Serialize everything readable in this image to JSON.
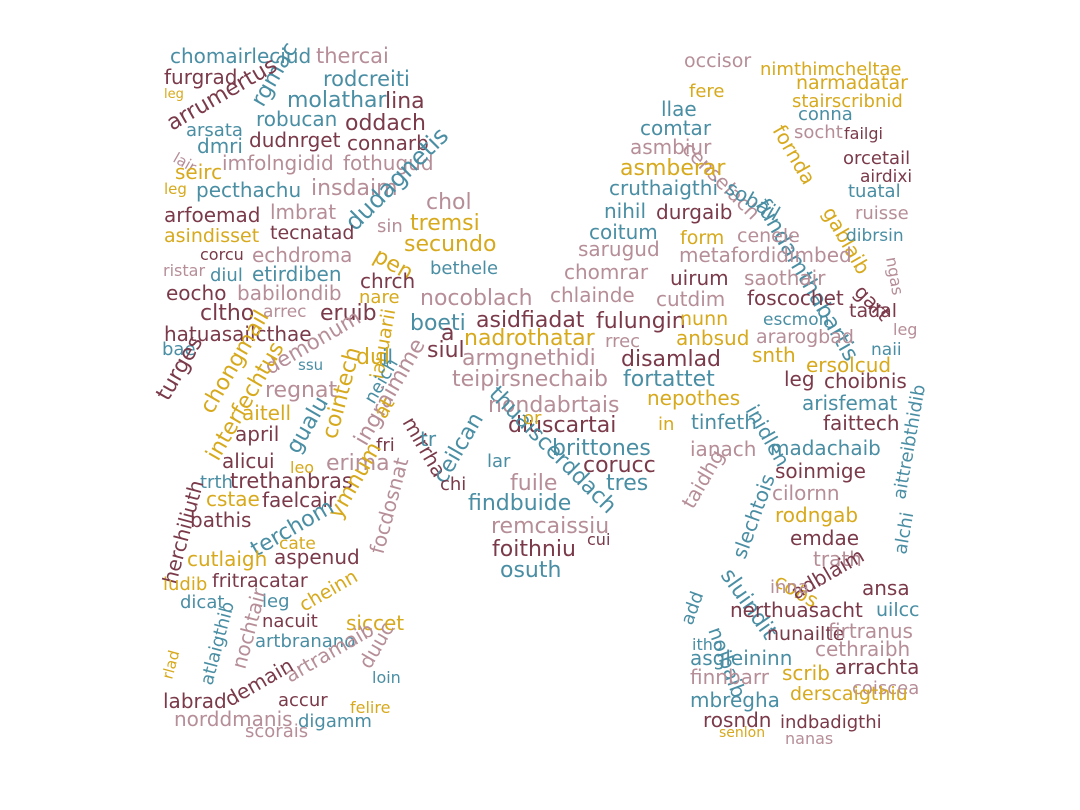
{
  "palette": {
    "maroon": "#7a3a4a",
    "teal": "#4a8ea4",
    "gold": "#d7a91d",
    "rose": "#b68e98"
  },
  "words": [
    {
      "id": "chomairleciud",
      "text": "chomairleciud",
      "color": "teal"
    },
    {
      "id": "thercai",
      "text": "thercai",
      "color": "rose"
    },
    {
      "id": "furgrad",
      "text": "furgrad",
      "color": "maroon"
    },
    {
      "id": "rgmac",
      "text": "rgmac",
      "color": "teal"
    },
    {
      "id": "rodcreiti",
      "text": "rodcreiti",
      "color": "teal"
    },
    {
      "id": "arrumertus",
      "text": "arrumertus",
      "color": "maroon"
    },
    {
      "id": "molathar",
      "text": "molathar",
      "color": "teal"
    },
    {
      "id": "lina",
      "text": "lina",
      "color": "maroon"
    },
    {
      "id": "leg1",
      "text": "leg",
      "color": "gold"
    },
    {
      "id": "robucan",
      "text": "robucan",
      "color": "teal"
    },
    {
      "id": "oddach",
      "text": "oddach",
      "color": "maroon"
    },
    {
      "id": "arsata",
      "text": "arsata",
      "color": "teal"
    },
    {
      "id": "dudnrget",
      "text": "dudnrget",
      "color": "maroon"
    },
    {
      "id": "connarb",
      "text": "connarb",
      "color": "maroon"
    },
    {
      "id": "dmri",
      "text": "dmri",
      "color": "teal"
    },
    {
      "id": "lair",
      "text": "lair",
      "color": "rose"
    },
    {
      "id": "imfolngidid",
      "text": "imfolngidid",
      "color": "rose"
    },
    {
      "id": "fothugud",
      "text": "fothugud",
      "color": "rose"
    },
    {
      "id": "seirc",
      "text": "seirc",
      "color": "gold"
    },
    {
      "id": "leg2",
      "text": "leg",
      "color": "gold"
    },
    {
      "id": "pecthachu",
      "text": "pecthachu",
      "color": "teal"
    },
    {
      "id": "insdaim",
      "text": "insdaim",
      "color": "rose"
    },
    {
      "id": "dudagnetis",
      "text": "dudagnetis",
      "color": "teal"
    },
    {
      "id": "chol",
      "text": "chol",
      "color": "rose"
    },
    {
      "id": "arfoemad",
      "text": "arfoemad",
      "color": "maroon"
    },
    {
      "id": "lmbrat",
      "text": "lmbrat",
      "color": "rose"
    },
    {
      "id": "tremsi",
      "text": "tremsi",
      "color": "gold"
    },
    {
      "id": "asindisset",
      "text": "asindisset",
      "color": "gold"
    },
    {
      "id": "tecnatad",
      "text": "tecnatad",
      "color": "maroon"
    },
    {
      "id": "sin",
      "text": "sin",
      "color": "rose"
    },
    {
      "id": "secundo",
      "text": "secundo",
      "color": "gold"
    },
    {
      "id": "corcu",
      "text": "corcu",
      "color": "maroon"
    },
    {
      "id": "echdroma",
      "text": "echdroma",
      "color": "rose"
    },
    {
      "id": "pen",
      "text": "pen",
      "color": "gold"
    },
    {
      "id": "bethele",
      "text": "bethele",
      "color": "teal"
    },
    {
      "id": "ristar",
      "text": "ristar",
      "color": "rose"
    },
    {
      "id": "diul",
      "text": "diul",
      "color": "teal"
    },
    {
      "id": "etirdiben",
      "text": "etirdiben",
      "color": "teal"
    },
    {
      "id": "chrch",
      "text": "chrch",
      "color": "maroon"
    },
    {
      "id": "eocho",
      "text": "eocho",
      "color": "maroon"
    },
    {
      "id": "babilondib",
      "text": "babilondib",
      "color": "rose"
    },
    {
      "id": "nare",
      "text": "nare",
      "color": "gold"
    },
    {
      "id": "nocoblach",
      "text": "nocoblach",
      "color": "rose"
    },
    {
      "id": "cltho",
      "text": "cltho",
      "color": "maroon"
    },
    {
      "id": "arrec",
      "text": "arrec",
      "color": "rose"
    },
    {
      "id": "eruib",
      "text": "eruib",
      "color": "maroon"
    },
    {
      "id": "boeti",
      "text": "boeti",
      "color": "teal"
    },
    {
      "id": "hatuasailcthae",
      "text": "hatuasailcthae",
      "color": "maroon"
    },
    {
      "id": "demonum",
      "text": "demonum",
      "color": "rose"
    },
    {
      "id": "ianuarii",
      "text": "ianuarii",
      "color": "gold"
    },
    {
      "id": "siul",
      "text": "siul",
      "color": "maroon"
    },
    {
      "id": "bae",
      "text": "bae",
      "color": "teal"
    },
    {
      "id": "turges",
      "text": "turges",
      "color": "maroon"
    },
    {
      "id": "chongmail",
      "text": "chongmail",
      "color": "gold"
    },
    {
      "id": "regnat",
      "text": "regnat",
      "color": "rose"
    },
    {
      "id": "dul",
      "text": "dul",
      "color": "gold"
    },
    {
      "id": "ssu",
      "text": "ssu",
      "color": "teal"
    },
    {
      "id": "interfechtus",
      "text": "interfechtus",
      "color": "gold"
    },
    {
      "id": "aitell",
      "text": "aitell",
      "color": "gold"
    },
    {
      "id": "cointech",
      "text": "cointech",
      "color": "gold"
    },
    {
      "id": "neich",
      "text": "neich",
      "color": "teal"
    },
    {
      "id": "ingraimme",
      "text": "ingraimme",
      "color": "rose"
    },
    {
      "id": "mirrha",
      "text": "mirrha",
      "color": "maroon"
    },
    {
      "id": "april",
      "text": "april",
      "color": "maroon"
    },
    {
      "id": "gualu",
      "text": "gualu",
      "color": "teal"
    },
    {
      "id": "alicui",
      "text": "alicui",
      "color": "maroon"
    },
    {
      "id": "erima",
      "text": "erima",
      "color": "rose"
    },
    {
      "id": "fri",
      "text": "fri",
      "color": "maroon"
    },
    {
      "id": "trth",
      "text": "trth",
      "color": "teal"
    },
    {
      "id": "trethanbras",
      "text": "trethanbras",
      "color": "maroon"
    },
    {
      "id": "leo",
      "text": "leo",
      "color": "gold"
    },
    {
      "id": "cstae",
      "text": "cstae",
      "color": "gold"
    },
    {
      "id": "faelcair",
      "text": "faelcair",
      "color": "maroon"
    },
    {
      "id": "ymnum",
      "text": "ymnum",
      "color": "gold"
    },
    {
      "id": "bathis",
      "text": "bathis",
      "color": "maroon"
    },
    {
      "id": "terchom",
      "text": "terchom",
      "color": "teal"
    },
    {
      "id": "herchiliuth",
      "text": "herchiliuth",
      "color": "maroon"
    },
    {
      "id": "cate",
      "text": "cate",
      "color": "gold"
    },
    {
      "id": "cutlaigh",
      "text": "cutlaigh",
      "color": "gold"
    },
    {
      "id": "aspenud",
      "text": "aspenud",
      "color": "maroon"
    },
    {
      "id": "iudib",
      "text": "iudib",
      "color": "gold"
    },
    {
      "id": "fritracatar",
      "text": "fritracatar",
      "color": "maroon"
    },
    {
      "id": "focdosnat",
      "text": "focdosnat",
      "color": "rose"
    },
    {
      "id": "dicat",
      "text": "dicat",
      "color": "teal"
    },
    {
      "id": "leg3",
      "text": "leg",
      "color": "teal"
    },
    {
      "id": "cheinn",
      "text": "cheinn",
      "color": "gold"
    },
    {
      "id": "nacuit",
      "text": "nacuit",
      "color": "maroon"
    },
    {
      "id": "siccet",
      "text": "siccet",
      "color": "gold"
    },
    {
      "id": "nochtair",
      "text": "nochtair",
      "color": "rose"
    },
    {
      "id": "artbranano",
      "text": "artbranano",
      "color": "teal"
    },
    {
      "id": "duuc",
      "text": "duuc",
      "color": "rose"
    },
    {
      "id": "atlaigthib",
      "text": "atlaigthib",
      "color": "teal"
    },
    {
      "id": "rlad",
      "text": "rlad",
      "color": "gold"
    },
    {
      "id": "artramaib",
      "text": "artramaib",
      "color": "rose"
    },
    {
      "id": "loin",
      "text": "loin",
      "color": "teal"
    },
    {
      "id": "demain",
      "text": "demain",
      "color": "maroon"
    },
    {
      "id": "labrad",
      "text": "labrad",
      "color": "maroon"
    },
    {
      "id": "accur",
      "text": "accur",
      "color": "maroon"
    },
    {
      "id": "felire",
      "text": "felire",
      "color": "gold"
    },
    {
      "id": "norddmanis",
      "text": "norddmanis",
      "color": "rose"
    },
    {
      "id": "digamm",
      "text": "digamm",
      "color": "teal"
    },
    {
      "id": "scorais",
      "text": "scorais",
      "color": "rose"
    },
    {
      "id": "occisor",
      "text": "occisor",
      "color": "rose"
    },
    {
      "id": "nimthimcheltae",
      "text": "nimthimcheltae",
      "color": "gold"
    },
    {
      "id": "fere",
      "text": "fere",
      "color": "gold"
    },
    {
      "id": "fornda",
      "text": "fornda",
      "color": "gold"
    },
    {
      "id": "narmadatar",
      "text": "narmadatar",
      "color": "gold"
    },
    {
      "id": "llae",
      "text": "llae",
      "color": "teal"
    },
    {
      "id": "stairscribnid",
      "text": "stairscribnid",
      "color": "gold"
    },
    {
      "id": "conna",
      "text": "conna",
      "color": "teal"
    },
    {
      "id": "comtar",
      "text": "comtar",
      "color": "teal"
    },
    {
      "id": "fundamthabartis",
      "text": "fundamthabartis",
      "color": "teal"
    },
    {
      "id": "socht",
      "text": "socht",
      "color": "rose"
    },
    {
      "id": "failgi",
      "text": "failgi",
      "color": "maroon"
    },
    {
      "id": "asmbiur",
      "text": "asmbiur",
      "color": "rose"
    },
    {
      "id": "censelach",
      "text": "censelach",
      "color": "rose"
    },
    {
      "id": "orcetail",
      "text": "orcetail",
      "color": "maroon"
    },
    {
      "id": "asmberar",
      "text": "asmberar",
      "color": "gold"
    },
    {
      "id": "gablaib",
      "text": "gablaib",
      "color": "gold"
    },
    {
      "id": "airdixi",
      "text": "airdixi",
      "color": "maroon"
    },
    {
      "id": "cruthaigthi",
      "text": "cruthaigthi",
      "color": "teal"
    },
    {
      "id": "sobail",
      "text": "sobail",
      "color": "teal"
    },
    {
      "id": "tuatal",
      "text": "tuatal",
      "color": "teal"
    },
    {
      "id": "nihil",
      "text": "nihil",
      "color": "teal"
    },
    {
      "id": "durgaib",
      "text": "durgaib",
      "color": "maroon"
    },
    {
      "id": "ruisse",
      "text": "ruisse",
      "color": "rose"
    },
    {
      "id": "coitum",
      "text": "coitum",
      "color": "teal"
    },
    {
      "id": "form",
      "text": "form",
      "color": "gold"
    },
    {
      "id": "cenele",
      "text": "cenele",
      "color": "rose"
    },
    {
      "id": "dibrsin",
      "text": "dibrsin",
      "color": "teal"
    },
    {
      "id": "sarugud",
      "text": "sarugud",
      "color": "rose"
    },
    {
      "id": "metafordidimbed",
      "text": "metafordidimbed",
      "color": "rose"
    },
    {
      "id": "ngas",
      "text": "ngas",
      "color": "rose"
    },
    {
      "id": "chomrar",
      "text": "chomrar",
      "color": "rose"
    },
    {
      "id": "uirum",
      "text": "uirum",
      "color": "maroon"
    },
    {
      "id": "saothair",
      "text": "saothair",
      "color": "rose"
    },
    {
      "id": "gart",
      "text": "gart",
      "color": "maroon"
    },
    {
      "id": "chlainde",
      "text": "chlainde",
      "color": "rose"
    },
    {
      "id": "cutdim",
      "text": "cutdim",
      "color": "rose"
    },
    {
      "id": "foscochet",
      "text": "foscochet",
      "color": "maroon"
    },
    {
      "id": "asidfiadat",
      "text": "asidfiadat",
      "color": "maroon"
    },
    {
      "id": "tadal",
      "text": "tadal",
      "color": "maroon"
    },
    {
      "id": "nadrothatar",
      "text": "nadrothatar",
      "color": "gold"
    },
    {
      "id": "fulungin",
      "text": "fulungin",
      "color": "maroon"
    },
    {
      "id": "nunn",
      "text": "nunn",
      "color": "gold"
    },
    {
      "id": "escmon",
      "text": "escmon",
      "color": "teal"
    },
    {
      "id": "ararogbad",
      "text": "ararogbad",
      "color": "rose"
    },
    {
      "id": "leg4",
      "text": "leg",
      "color": "rose"
    },
    {
      "id": "anbsud",
      "text": "anbsud",
      "color": "gold"
    },
    {
      "id": "rrec",
      "text": "rrec",
      "color": "rose"
    },
    {
      "id": "naii",
      "text": "naii",
      "color": "teal"
    },
    {
      "id": "armgnethidi",
      "text": "armgnethidi",
      "color": "rose"
    },
    {
      "id": "disamlad",
      "text": "disamlad",
      "color": "maroon"
    },
    {
      "id": "snth",
      "text": "snth",
      "color": "gold"
    },
    {
      "id": "ersolcud",
      "text": "ersolcud",
      "color": "gold"
    },
    {
      "id": "teipirsnechaib",
      "text": "teipirsnechaib",
      "color": "rose"
    },
    {
      "id": "fortattet",
      "text": "fortattet",
      "color": "teal"
    },
    {
      "id": "inidlen",
      "text": "inidlen",
      "color": "teal"
    },
    {
      "id": "leg5",
      "text": "leg",
      "color": "maroon"
    },
    {
      "id": "choibnis",
      "text": "choibnis",
      "color": "maroon"
    },
    {
      "id": "nondabrtais",
      "text": "nondabrtais",
      "color": "rose"
    },
    {
      "id": "nepothes",
      "text": "nepothes",
      "color": "gold"
    },
    {
      "id": "arisfemat",
      "text": "arisfemat",
      "color": "teal"
    },
    {
      "id": "diuscartai",
      "text": "diuscartai",
      "color": "maroon"
    },
    {
      "id": "tinfeth",
      "text": "tinfeth",
      "color": "teal"
    },
    {
      "id": "faittech",
      "text": "faittech",
      "color": "maroon"
    },
    {
      "id": "ceilcan",
      "text": "ceilcan",
      "color": "teal"
    },
    {
      "id": "thuaiscerddach",
      "text": "thuaiscerddach",
      "color": "teal"
    },
    {
      "id": "brittones",
      "text": "brittones",
      "color": "teal"
    },
    {
      "id": "ianach",
      "text": "ianach",
      "color": "rose"
    },
    {
      "id": "madachaib",
      "text": "madachaib",
      "color": "teal"
    },
    {
      "id": "aittreibthidib",
      "text": "aittreibthidib",
      "color": "teal"
    },
    {
      "id": "lar",
      "text": "lar",
      "color": "teal"
    },
    {
      "id": "corucc",
      "text": "corucc",
      "color": "maroon"
    },
    {
      "id": "taidhg",
      "text": "taidhg",
      "color": "rose"
    },
    {
      "id": "soinmige",
      "text": "soinmige",
      "color": "maroon"
    },
    {
      "id": "chi",
      "text": "chi",
      "color": "maroon"
    },
    {
      "id": "fuile",
      "text": "fuile",
      "color": "rose"
    },
    {
      "id": "tres",
      "text": "tres",
      "color": "teal"
    },
    {
      "id": "slechtois",
      "text": "slechtois",
      "color": "teal"
    },
    {
      "id": "cilornn",
      "text": "cilornn",
      "color": "rose"
    },
    {
      "id": "findbuide",
      "text": "findbuide",
      "color": "teal"
    },
    {
      "id": "rodngab",
      "text": "rodngab",
      "color": "gold"
    },
    {
      "id": "remcaissiu",
      "text": "remcaissiu",
      "color": "rose"
    },
    {
      "id": "emdae",
      "text": "emdae",
      "color": "maroon"
    },
    {
      "id": "alchi",
      "text": "alchi",
      "color": "teal"
    },
    {
      "id": "foithniu",
      "text": "foithniu",
      "color": "maroon"
    },
    {
      "id": "cui",
      "text": "cui",
      "color": "maroon"
    },
    {
      "id": "sluindit",
      "text": "sluindit",
      "color": "teal"
    },
    {
      "id": "trath",
      "text": "trath",
      "color": "rose"
    },
    {
      "id": "osuth",
      "text": "osuth",
      "color": "teal"
    },
    {
      "id": "cobs",
      "text": "cobs",
      "color": "gold"
    },
    {
      "id": "adblaim",
      "text": "adblaim",
      "color": "maroon"
    },
    {
      "id": "noibaib",
      "text": "noibaib",
      "color": "teal"
    },
    {
      "id": "inna",
      "text": "inna",
      "color": "rose"
    },
    {
      "id": "ansa",
      "text": "ansa",
      "color": "maroon"
    },
    {
      "id": "nerthuasacht",
      "text": "nerthuasacht",
      "color": "maroon"
    },
    {
      "id": "uilcc",
      "text": "uilcc",
      "color": "teal"
    },
    {
      "id": "nunailte",
      "text": "nunailte",
      "color": "maroon"
    },
    {
      "id": "firtranus",
      "text": "firtranus",
      "color": "rose"
    },
    {
      "id": "asgleininn",
      "text": "asgleininn",
      "color": "teal"
    },
    {
      "id": "cethraibh",
      "text": "cethraibh",
      "color": "rose"
    },
    {
      "id": "arrachta",
      "text": "arrachta",
      "color": "maroon"
    },
    {
      "id": "finnbarr",
      "text": "finnbarr",
      "color": "rose"
    },
    {
      "id": "scrib",
      "text": "scrib",
      "color": "gold"
    },
    {
      "id": "coiscea",
      "text": "coiscea",
      "color": "rose"
    },
    {
      "id": "mbregha",
      "text": "mbregha",
      "color": "teal"
    },
    {
      "id": "derscaigthiu",
      "text": "derscaigthiu",
      "color": "gold"
    },
    {
      "id": "rosndn",
      "text": "rosndn",
      "color": "maroon"
    },
    {
      "id": "indbadigthi",
      "text": "indbadigthi",
      "color": "maroon"
    },
    {
      "id": "nanas",
      "text": "nanas",
      "color": "rose"
    },
    {
      "id": "senlon",
      "text": "senlon",
      "color": "gold"
    },
    {
      "id": "add",
      "text": "add",
      "color": "teal"
    },
    {
      "id": "itho",
      "text": "itho",
      "color": "teal"
    },
    {
      "id": "a",
      "text": "a",
      "color": "maroon"
    },
    {
      "id": "il",
      "text": "il",
      "color": "teal"
    },
    {
      "id": "at",
      "text": "at",
      "color": "gold"
    },
    {
      "id": "tr",
      "text": "tr",
      "color": "teal"
    },
    {
      "id": "in",
      "text": "in",
      "color": "gold"
    },
    {
      "id": "or",
      "text": "or",
      "color": "gold"
    }
  ]
}
